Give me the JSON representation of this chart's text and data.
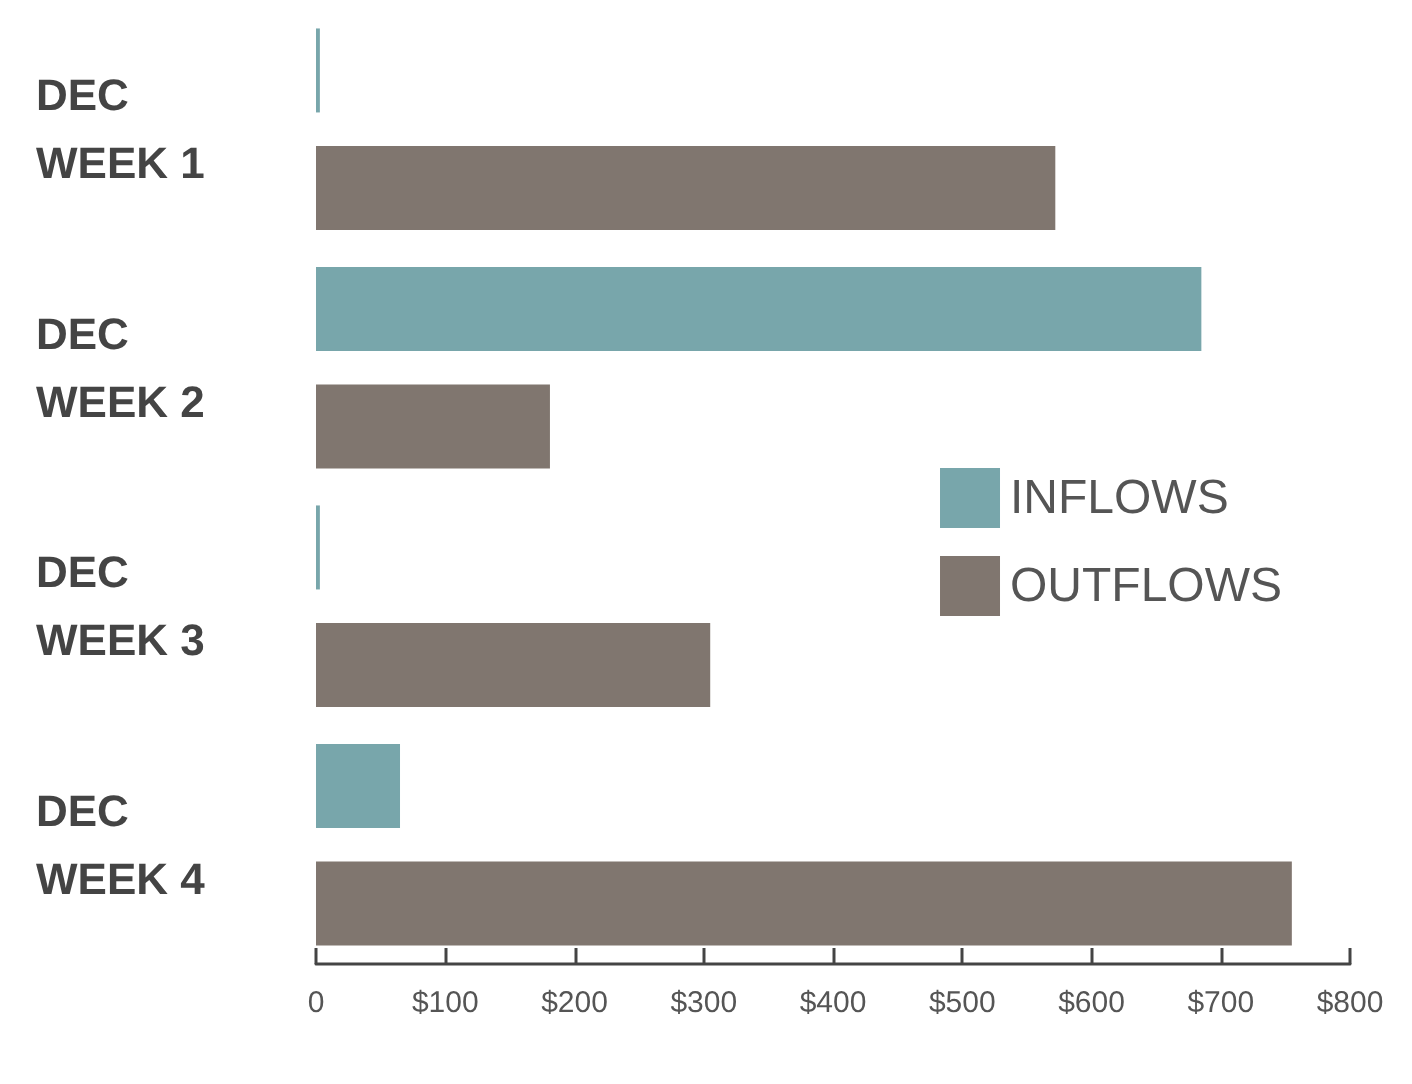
{
  "chart_data": {
    "type": "bar",
    "orientation": "horizontal",
    "categories": [
      "DEC\nWEEK 1",
      "DEC\nWEEK 2",
      "DEC\nWEEK 3",
      "DEC\nWEEK 4"
    ],
    "series": [
      {
        "name": "INFLOWS",
        "color": "#78a6ab",
        "values": [
          3,
          685,
          3,
          65
        ]
      },
      {
        "name": "OUTFLOWS",
        "color": "#80766f",
        "values": [
          572,
          181,
          305,
          755
        ]
      }
    ],
    "xlim": [
      0,
      800
    ],
    "xticks": [
      0,
      {
        "value": 100,
        "label": "$100"
      },
      {
        "value": 200,
        "label": "$200"
      },
      {
        "value": 300,
        "label": "$300"
      },
      {
        "value": 400,
        "label": "$400"
      },
      {
        "value": 500,
        "label": "$500"
      },
      {
        "value": 600,
        "label": "$600"
      },
      {
        "value": 700,
        "label": "$700"
      },
      {
        "value": 800,
        "label": "$800"
      }
    ],
    "grid": false,
    "legend": "right"
  }
}
